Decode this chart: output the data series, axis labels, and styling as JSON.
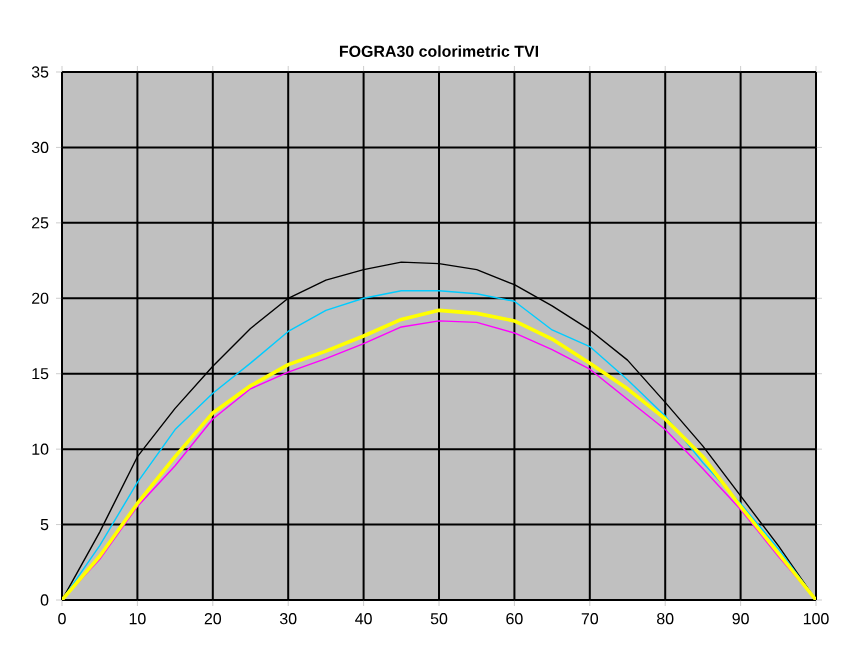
{
  "chart_data": {
    "type": "line",
    "title": "FOGRA30 colorimetric TVI",
    "x": [
      0,
      5,
      10,
      15,
      20,
      25,
      30,
      35,
      40,
      45,
      50,
      55,
      60,
      65,
      70,
      75,
      80,
      85,
      90,
      95,
      100
    ],
    "series": [
      {
        "color": "#000000",
        "values": [
          0,
          4.5,
          9.5,
          12.7,
          15.5,
          18.0,
          20.0,
          21.2,
          21.9,
          22.4,
          22.3,
          21.9,
          20.9,
          19.5,
          17.9,
          15.9,
          13.1,
          10.2,
          6.9,
          3.6,
          0
        ]
      },
      {
        "color": "#00ccff",
        "values": [
          0,
          3.6,
          7.8,
          11.3,
          13.7,
          15.7,
          17.8,
          19.2,
          20.0,
          20.5,
          20.5,
          20.3,
          19.8,
          17.9,
          16.8,
          14.6,
          12.2,
          9.1,
          6.4,
          3.4,
          0
        ]
      },
      {
        "color": "#ff00ff",
        "values": [
          0,
          2.7,
          6.2,
          8.9,
          12.0,
          14.0,
          15.1,
          16.0,
          17.0,
          18.1,
          18.5,
          18.4,
          17.7,
          16.6,
          15.3,
          13.3,
          11.3,
          8.7,
          6.0,
          2.9,
          0
        ]
      },
      {
        "color": "#ffff00",
        "values": [
          0,
          2.9,
          6.4,
          9.5,
          12.4,
          14.2,
          15.6,
          16.5,
          17.5,
          18.6,
          19.2,
          19.0,
          18.5,
          17.3,
          15.7,
          14.0,
          12.0,
          9.5,
          6.2,
          3.1,
          0
        ]
      }
    ],
    "xlim": [
      0,
      100
    ],
    "ylim": [
      0,
      35
    ],
    "xticks": [
      0,
      10,
      20,
      30,
      40,
      50,
      60,
      70,
      80,
      90,
      100
    ],
    "yticks": [
      0,
      5,
      10,
      15,
      20,
      25,
      30,
      35
    ],
    "grid": true,
    "marker": "none",
    "line_style": "solid"
  }
}
